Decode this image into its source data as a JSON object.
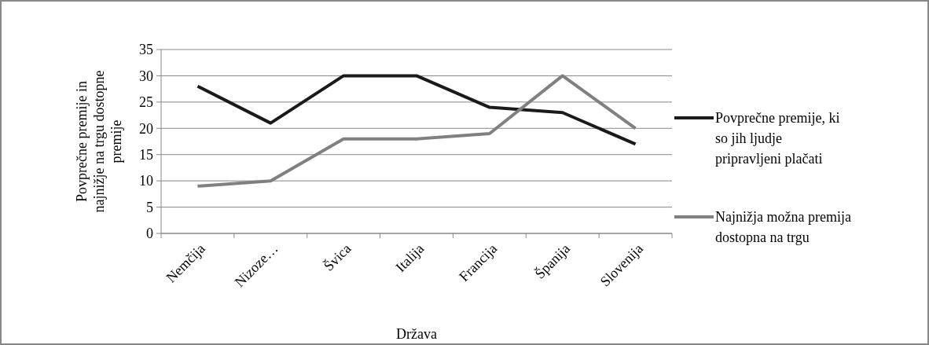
{
  "chart_data": {
    "type": "line",
    "xlabel": "Država",
    "ylabel": "Povprečne premije in najnižje na trgu dostopne premije",
    "categories": [
      "Nemčija",
      "Nizoze…",
      "Švica",
      "Italija",
      "Francija",
      "Španija",
      "Slovenija"
    ],
    "series": [
      {
        "name": "Povprečne premije, ki so jih ljudje pripravljeni plačati",
        "color": "#1a1a1a",
        "values": [
          28,
          21,
          30,
          30,
          24,
          23,
          17
        ]
      },
      {
        "name": "Najnižja možna premija dostopna na trgu",
        "color": "#808080",
        "values": [
          9,
          10,
          18,
          18,
          19,
          30,
          20
        ]
      }
    ],
    "ylim": [
      0,
      35
    ],
    "yticks": [
      0,
      5,
      10,
      15,
      20,
      25,
      30,
      35
    ],
    "grid": "y",
    "legend": "right",
    "marker": "none",
    "line_style": "solid"
  }
}
